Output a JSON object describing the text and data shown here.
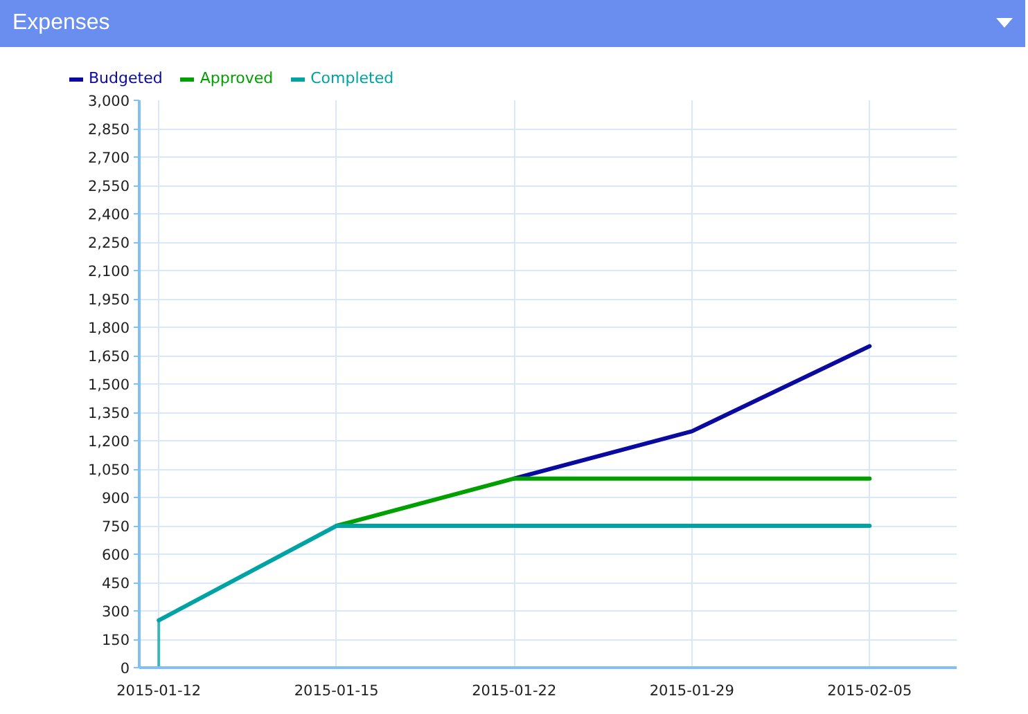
{
  "chart_data": {
    "type": "line",
    "title": "Expenses",
    "categories": [
      "2015-01-12",
      "2015-01-15",
      "2015-01-22",
      "2015-01-29",
      "2015-02-05"
    ],
    "series": [
      {
        "name": "Budgeted",
        "color": "#0a0aa0",
        "values": [
          null,
          null,
          1000,
          1250,
          1700
        ]
      },
      {
        "name": "Approved",
        "color": "#00a000",
        "values": [
          null,
          750,
          1000,
          1000,
          1000
        ]
      },
      {
        "name": "Completed",
        "color": "#00a3a3",
        "values": [
          250,
          750,
          750,
          750,
          750
        ],
        "errors": [
          [
            0,
            250
          ],
          null,
          null,
          null,
          null
        ]
      }
    ],
    "ylim": [
      0,
      3000
    ],
    "yticks": [
      0,
      150,
      300,
      450,
      600,
      750,
      900,
      {
        "value": 1050,
        "label": "1,050"
      },
      {
        "value": 1200,
        "label": "1,200"
      },
      {
        "value": 1350,
        "label": "1,350"
      },
      {
        "value": 1500,
        "label": "1,500"
      },
      {
        "value": 1650,
        "label": "1,650"
      },
      {
        "value": 1800,
        "label": "1,800"
      },
      {
        "value": 1950,
        "label": "1,950"
      },
      {
        "value": 2100,
        "label": "2,100"
      },
      {
        "value": 2250,
        "label": "2,250"
      },
      {
        "value": 2400,
        "label": "2,400"
      },
      {
        "value": 2550,
        "label": "2,550"
      },
      {
        "value": 2700,
        "label": "2,700"
      },
      {
        "value": 2850,
        "label": "2,850"
      },
      {
        "value": 3000,
        "label": "3,000"
      }
    ],
    "grid": true,
    "legend": "top left"
  }
}
